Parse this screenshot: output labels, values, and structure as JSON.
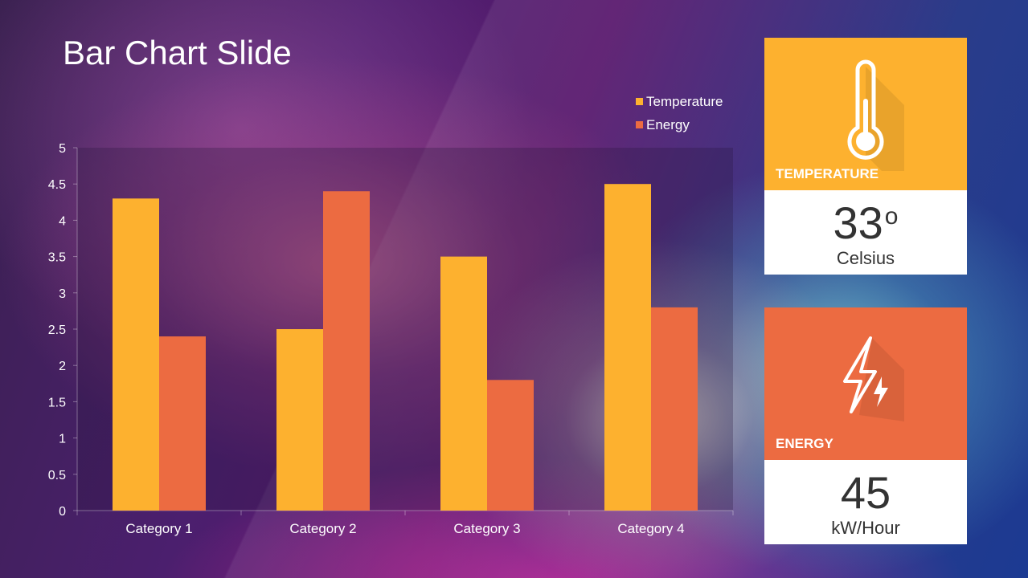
{
  "slide": {
    "title": "Bar Chart Slide"
  },
  "chart_data": {
    "type": "bar",
    "title": "",
    "xlabel": "",
    "ylabel": "",
    "categories": [
      "Category 1",
      "Category 2",
      "Category 3",
      "Category 4"
    ],
    "series": [
      {
        "name": "Temperature",
        "color": "#FDB12F",
        "values": [
          4.3,
          2.5,
          3.5,
          4.5
        ]
      },
      {
        "name": "Energy",
        "color": "#EC6B41",
        "values": [
          2.4,
          4.4,
          1.8,
          2.8
        ]
      }
    ],
    "ylim": [
      0,
      5
    ],
    "yticks": [
      "0",
      "0.5",
      "1",
      "1.5",
      "2",
      "2.5",
      "3",
      "3.5",
      "4",
      "4.5",
      "5"
    ],
    "grid": false,
    "legend": "top-right"
  },
  "cards": {
    "temperature": {
      "label": "TEMPERATURE",
      "value": "33",
      "degree": "o",
      "unit": "Celsius",
      "color": "#FDB12F",
      "icon": "thermometer-icon"
    },
    "energy": {
      "label": "ENERGY",
      "value": "45",
      "unit": "kW/Hour",
      "color": "#EC6B41",
      "icon": "lightning-icon"
    }
  }
}
